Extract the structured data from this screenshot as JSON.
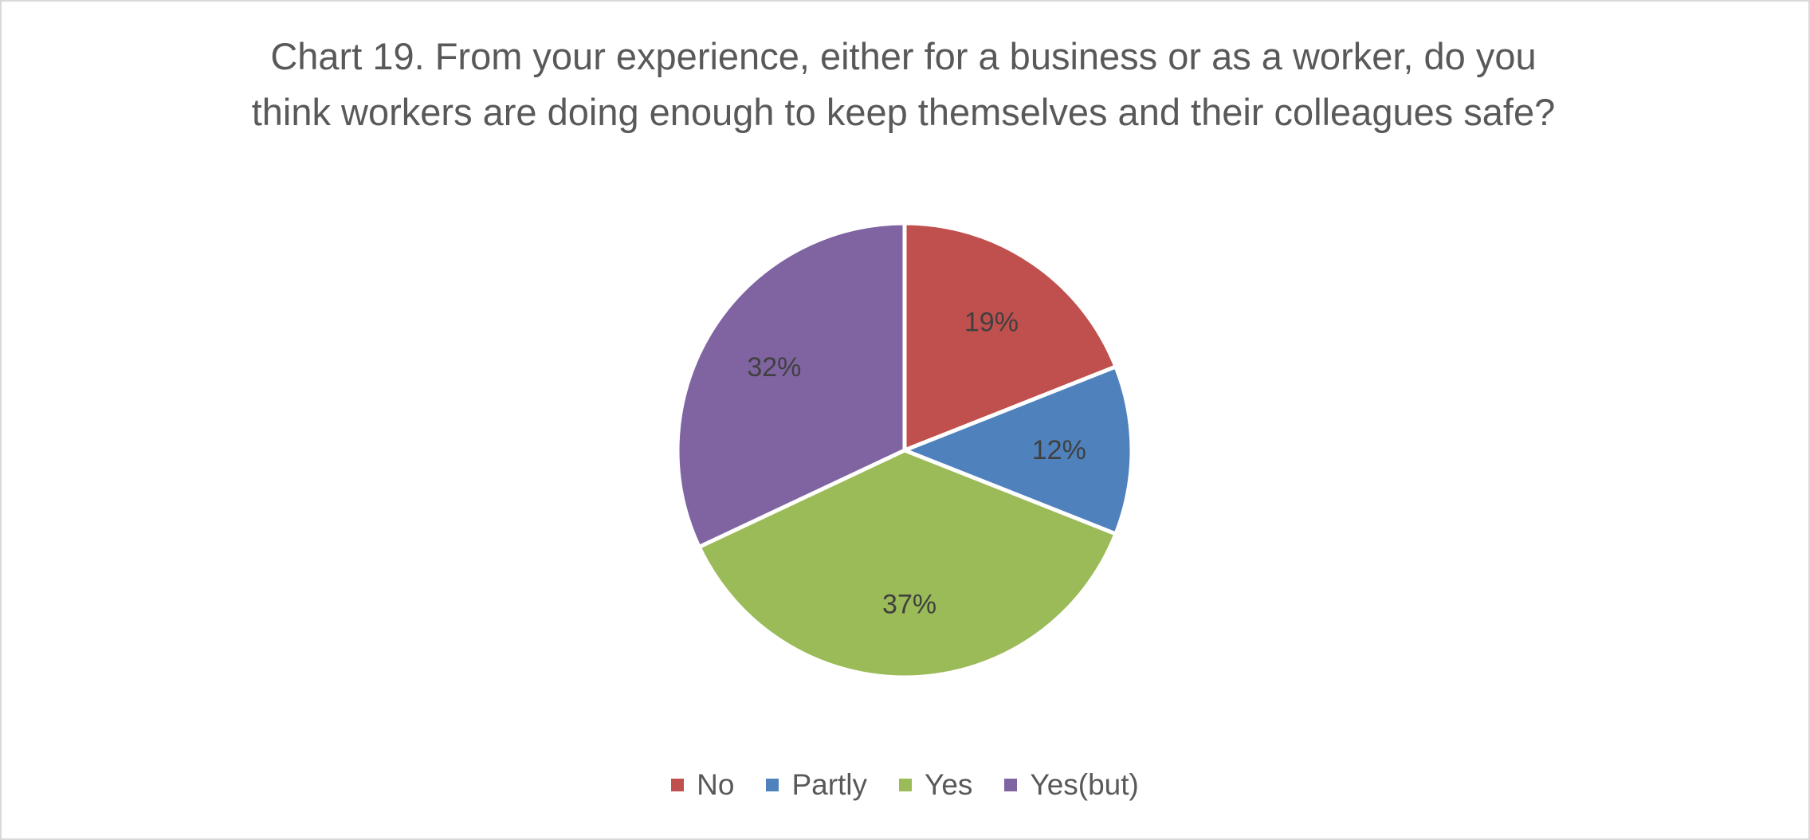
{
  "chart_data": {
    "type": "pie",
    "title_lines": [
      "Chart 19. From your experience, either for a business or as a worker, do you",
      "think workers are doing enough to keep themselves and their colleagues safe?"
    ],
    "categories": [
      "No",
      "Partly",
      "Yes",
      "Yes(but)"
    ],
    "values": [
      19,
      12,
      37,
      32
    ],
    "data_labels": [
      "19%",
      "12%",
      "37%",
      "32%"
    ],
    "colors": [
      "#c0504d",
      "#4f81bd",
      "#9bbb59",
      "#8064a2"
    ],
    "start_angle_deg": 0,
    "direction": "clockwise",
    "legend_position": "bottom"
  }
}
